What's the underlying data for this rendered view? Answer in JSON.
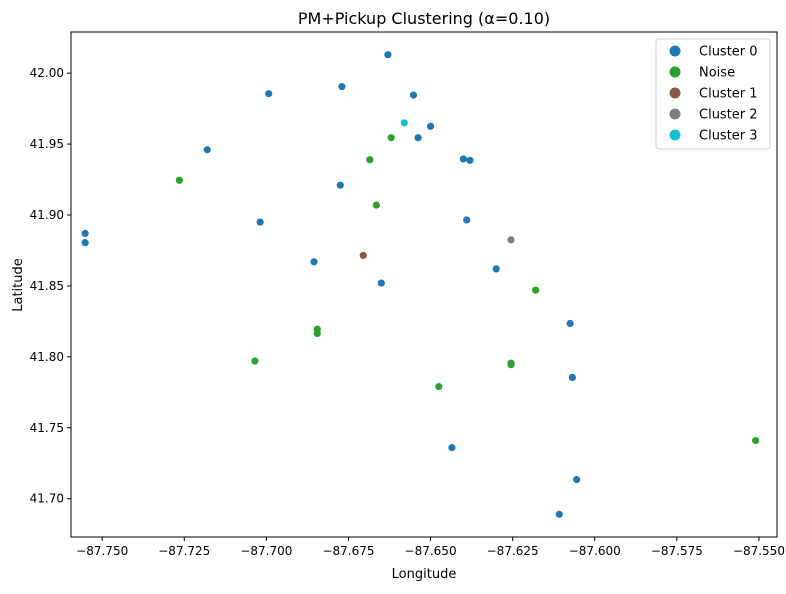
{
  "chart_data": {
    "type": "scatter",
    "title": "PM+Pickup Clustering (α=0.10)",
    "xlabel": "Longitude",
    "ylabel": "Latitude",
    "xlim": [
      -87.7595,
      -87.5445
    ],
    "ylim": [
      41.673,
      42.029
    ],
    "x_ticks": [
      -87.75,
      -87.725,
      -87.7,
      -87.675,
      -87.65,
      -87.625,
      -87.6,
      -87.575,
      -87.55
    ],
    "x_tick_labels": [
      "−87.750",
      "−87.725",
      "−87.700",
      "−87.675",
      "−87.650",
      "−87.625",
      "−87.600",
      "−87.575",
      "−87.550"
    ],
    "y_ticks": [
      41.7,
      41.75,
      41.8,
      41.85,
      41.9,
      41.95,
      42.0
    ],
    "y_tick_labels": [
      "41.70",
      "41.75",
      "41.80",
      "41.85",
      "41.90",
      "41.95",
      "42.00"
    ],
    "grid": false,
    "legend_position": "top-right",
    "series": [
      {
        "name": "Cluster 0",
        "color": "#1f77b4",
        "points": [
          [
            -87.663,
            42.013
          ],
          [
            -87.6993,
            41.9855
          ],
          [
            -87.677,
            41.9905
          ],
          [
            -87.6552,
            41.9845
          ],
          [
            -87.65,
            41.9625
          ],
          [
            -87.6538,
            41.9545
          ],
          [
            -87.64,
            41.9395
          ],
          [
            -87.638,
            41.9385
          ],
          [
            -87.718,
            41.946
          ],
          [
            -87.6775,
            41.921
          ],
          [
            -87.7019,
            41.895
          ],
          [
            -87.639,
            41.8965
          ],
          [
            -87.7552,
            41.887
          ],
          [
            -87.7552,
            41.8805
          ],
          [
            -87.6855,
            41.867
          ],
          [
            -87.63,
            41.862
          ],
          [
            -87.665,
            41.852
          ],
          [
            -87.6075,
            41.8235
          ],
          [
            -87.6068,
            41.7855
          ],
          [
            -87.6435,
            41.736
          ],
          [
            -87.6055,
            41.7135
          ],
          [
            -87.6108,
            41.689
          ]
        ]
      },
      {
        "name": "Noise",
        "color": "#2ca02c",
        "points": [
          [
            -87.7265,
            41.9245
          ],
          [
            -87.6685,
            41.939
          ],
          [
            -87.662,
            41.9545
          ],
          [
            -87.6665,
            41.907
          ],
          [
            -87.618,
            41.847
          ],
          [
            -87.6845,
            41.8195
          ],
          [
            -87.6845,
            41.8165
          ],
          [
            -87.7035,
            41.797
          ],
          [
            -87.6255,
            41.7955
          ],
          [
            -87.6255,
            41.7945
          ],
          [
            -87.6475,
            41.779
          ],
          [
            -87.551,
            41.741
          ]
        ]
      },
      {
        "name": "Cluster 1",
        "color": "#8c564b",
        "points": [
          [
            -87.6705,
            41.8715
          ]
        ]
      },
      {
        "name": "Cluster 2",
        "color": "#7f7f7f",
        "points": [
          [
            -87.6255,
            41.8825
          ]
        ]
      },
      {
        "name": "Cluster 3",
        "color": "#17becf",
        "points": [
          [
            -87.658,
            41.965
          ]
        ]
      }
    ]
  }
}
